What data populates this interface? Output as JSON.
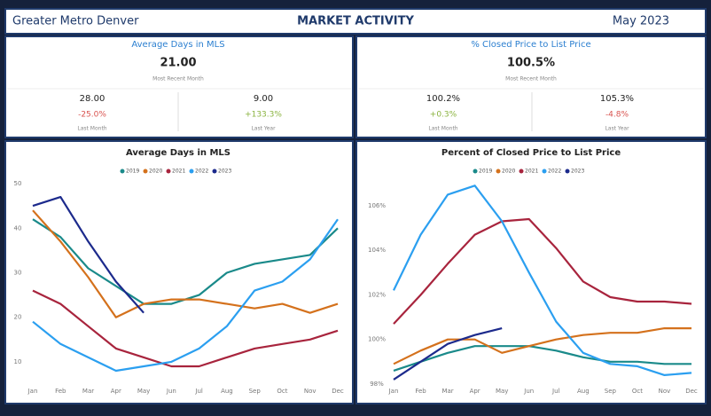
{
  "header": {
    "left": "Greater Metro Denver",
    "center": "MARKET ACTIVITY",
    "right": "May 2023"
  },
  "kpis": [
    {
      "title": "Average Days in MLS",
      "value": "21.00",
      "caption": "Most Recent Month",
      "compare": [
        {
          "value": "28.00",
          "change": "-25.0%",
          "label": "Last Month"
        },
        {
          "value": "9.00",
          "change": "+133.3%",
          "label": "Last Year"
        }
      ]
    },
    {
      "title": "% Closed Price to List Price",
      "value": "100.5%",
      "caption": "Most Recent Month",
      "compare": [
        {
          "value": "100.2%",
          "change": "+0.3%",
          "label": "Last Month"
        },
        {
          "value": "105.3%",
          "change": "-4.8%",
          "label": "Last Year"
        }
      ]
    }
  ],
  "chart_data": [
    {
      "type": "line",
      "title": "Average Days in MLS",
      "categories": [
        "Jan",
        "Feb",
        "Mar",
        "Apr",
        "May",
        "Jun",
        "Jul",
        "Aug",
        "Sep",
        "Oct",
        "Nov",
        "Dec"
      ],
      "ylim": [
        7,
        51
      ],
      "yticks": [
        10,
        20,
        30,
        40,
        50
      ],
      "series": [
        {
          "name": "2019",
          "color": "#1a8a8a",
          "values": [
            42,
            38,
            31,
            27,
            23,
            23,
            25,
            30,
            32,
            33,
            34,
            40
          ]
        },
        {
          "name": "2020",
          "color": "#d4711c",
          "values": [
            44,
            37,
            29,
            20,
            23,
            24,
            24,
            23,
            22,
            23,
            21,
            23
          ]
        },
        {
          "name": "2021",
          "color": "#a8243d",
          "values": [
            26,
            23,
            18,
            13,
            11,
            9,
            9,
            11,
            13,
            14,
            15,
            17
          ]
        },
        {
          "name": "2022",
          "color": "#2b9ff0",
          "values": [
            19,
            14,
            11,
            8,
            9,
            10,
            13,
            18,
            26,
            28,
            33,
            42
          ]
        },
        {
          "name": "2023",
          "color": "#1c2a8c",
          "values": [
            45,
            47,
            37,
            28,
            21,
            null,
            null,
            null,
            null,
            null,
            null,
            null
          ]
        }
      ]
    },
    {
      "type": "line",
      "title": "Percent of Closed Price to List Price",
      "categories": [
        "Jan",
        "Feb",
        "Mar",
        "Apr",
        "May",
        "Jun",
        "Jul",
        "Aug",
        "Sep",
        "Oct",
        "Nov",
        "Dec"
      ],
      "ylim": [
        97.7,
        107.1
      ],
      "yticks": [
        {
          "value": 98,
          "label": "98%"
        },
        {
          "value": 100,
          "label": "100%"
        },
        {
          "value": 102,
          "label": "102%"
        },
        {
          "value": 104,
          "label": "104%"
        },
        {
          "value": 106,
          "label": "106%"
        }
      ],
      "series": [
        {
          "name": "2019",
          "color": "#1a8a8a",
          "values": [
            98.6,
            99.0,
            99.4,
            99.7,
            99.7,
            99.7,
            99.5,
            99.2,
            99.0,
            99.0,
            98.9,
            98.9
          ]
        },
        {
          "name": "2020",
          "color": "#d4711c",
          "values": [
            98.9,
            99.5,
            100.0,
            100.0,
            99.4,
            99.7,
            100.0,
            100.2,
            100.3,
            100.3,
            100.5,
            100.5
          ]
        },
        {
          "name": "2021",
          "color": "#a8243d",
          "values": [
            100.7,
            102.0,
            103.4,
            104.7,
            105.3,
            105.4,
            104.1,
            102.6,
            101.9,
            101.7,
            101.7,
            101.6
          ]
        },
        {
          "name": "2022",
          "color": "#2b9ff0",
          "values": [
            102.2,
            104.7,
            106.5,
            106.9,
            105.3,
            103.0,
            100.8,
            99.4,
            98.9,
            98.8,
            98.4,
            98.5
          ]
        },
        {
          "name": "2023",
          "color": "#1c2a8c",
          "values": [
            98.2,
            99.0,
            99.8,
            100.2,
            100.5,
            null,
            null,
            null,
            null,
            null,
            null,
            null
          ]
        }
      ]
    }
  ]
}
